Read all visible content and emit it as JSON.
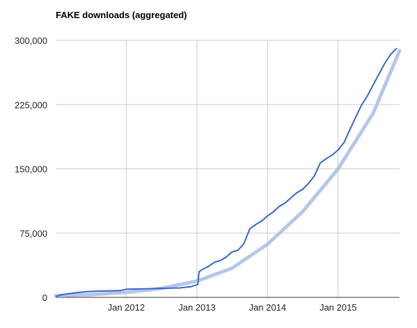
{
  "chart_data": {
    "type": "line",
    "title": "FAKE downloads (aggregated)",
    "xlabel": "",
    "ylabel": "",
    "ylim": [
      0,
      300000
    ],
    "y_ticks": [
      {
        "value": 0,
        "label": "0"
      },
      {
        "value": 75000,
        "label": "75,000"
      },
      {
        "value": 150000,
        "label": "150,000"
      },
      {
        "value": 225000,
        "label": "225,000"
      },
      {
        "value": 300000,
        "label": "300,000"
      }
    ],
    "xlim": [
      "2011-01-01",
      "2015-11-15"
    ],
    "x_ticks": [
      {
        "date": "2012-01-01",
        "label": "Jan 2012"
      },
      {
        "date": "2013-01-01",
        "label": "Jan 2013"
      },
      {
        "date": "2014-01-01",
        "label": "Jan 2014"
      },
      {
        "date": "2015-01-01",
        "label": "Jan 2015"
      }
    ],
    "grid": true,
    "legend": "none",
    "series": [
      {
        "color": "#3366cc",
        "points": [
          [
            "2011-01-01",
            1000
          ],
          [
            "2011-02-01",
            3000
          ],
          [
            "2011-03-01",
            4000
          ],
          [
            "2011-04-01",
            5000
          ],
          [
            "2011-06-01",
            6500
          ],
          [
            "2011-08-01",
            7200
          ],
          [
            "2011-10-01",
            7600
          ],
          [
            "2011-12-01",
            8000
          ],
          [
            "2012-01-01",
            9500
          ],
          [
            "2012-04-01",
            10000
          ],
          [
            "2012-07-01",
            10500
          ],
          [
            "2012-10-01",
            11000
          ],
          [
            "2012-12-01",
            12500
          ],
          [
            "2013-01-05",
            15000
          ],
          [
            "2013-01-12",
            30000
          ],
          [
            "2013-02-01",
            33000
          ],
          [
            "2013-03-01",
            36000
          ],
          [
            "2013-04-01",
            41000
          ],
          [
            "2013-05-01",
            43000
          ],
          [
            "2013-06-01",
            47000
          ],
          [
            "2013-07-01",
            53000
          ],
          [
            "2013-08-01",
            55000
          ],
          [
            "2013-09-01",
            63000
          ],
          [
            "2013-10-01",
            80000
          ],
          [
            "2013-11-01",
            85000
          ],
          [
            "2013-12-01",
            89000
          ],
          [
            "2014-01-01",
            95000
          ],
          [
            "2014-02-01",
            100000
          ],
          [
            "2014-03-01",
            106000
          ],
          [
            "2014-04-01",
            110000
          ],
          [
            "2014-05-01",
            116000
          ],
          [
            "2014-06-01",
            122000
          ],
          [
            "2014-07-01",
            126000
          ],
          [
            "2014-08-01",
            133000
          ],
          [
            "2014-09-01",
            142000
          ],
          [
            "2014-10-01",
            157000
          ],
          [
            "2014-11-01",
            162000
          ],
          [
            "2014-12-01",
            166000
          ],
          [
            "2015-01-01",
            172000
          ],
          [
            "2015-02-01",
            181000
          ],
          [
            "2015-03-01",
            195000
          ],
          [
            "2015-04-01",
            210000
          ],
          [
            "2015-05-01",
            224000
          ],
          [
            "2015-06-01",
            235000
          ],
          [
            "2015-07-01",
            248000
          ],
          [
            "2015-08-01",
            261000
          ],
          [
            "2015-09-01",
            274000
          ],
          [
            "2015-10-01",
            284000
          ],
          [
            "2015-11-01",
            291000
          ]
        ]
      }
    ],
    "trendline": {
      "type": "exponential",
      "color": "#b3c6ea",
      "points": [
        [
          "2011-01-01",
          2000
        ],
        [
          "2011-07-01",
          3200
        ],
        [
          "2012-01-01",
          5800
        ],
        [
          "2012-07-01",
          10500
        ],
        [
          "2013-01-01",
          19000
        ],
        [
          "2013-07-01",
          34000
        ],
        [
          "2014-01-01",
          62000
        ],
        [
          "2014-07-01",
          100000
        ],
        [
          "2015-01-01",
          150000
        ],
        [
          "2015-07-01",
          215000
        ],
        [
          "2015-11-15",
          288000
        ]
      ]
    }
  }
}
